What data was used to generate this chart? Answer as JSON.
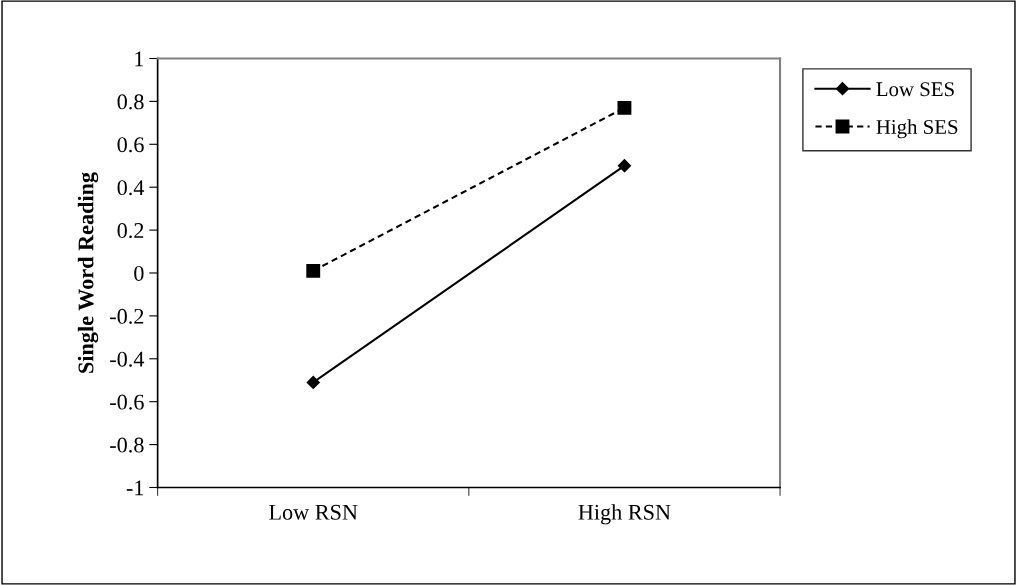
{
  "chart_data": {
    "type": "line",
    "ylabel": "Single Word Reading",
    "categories": [
      "Low RSN",
      "High RSN"
    ],
    "series": [
      {
        "name": "Low SES",
        "color": "#000000",
        "values": [
          -0.51,
          0.5
        ],
        "marker": "diamond",
        "line_style": "solid"
      },
      {
        "name": "High SES",
        "color": "#000000",
        "values": [
          0.01,
          0.77
        ],
        "marker": "square",
        "line_style": "dashed"
      }
    ],
    "ylim": [
      -1,
      1
    ],
    "yticks": [
      -1,
      -0.8,
      -0.6,
      -0.4,
      -0.2,
      0,
      0.2,
      0.4,
      0.6,
      0.8,
      1
    ],
    "grid": false,
    "legend": "top right"
  }
}
